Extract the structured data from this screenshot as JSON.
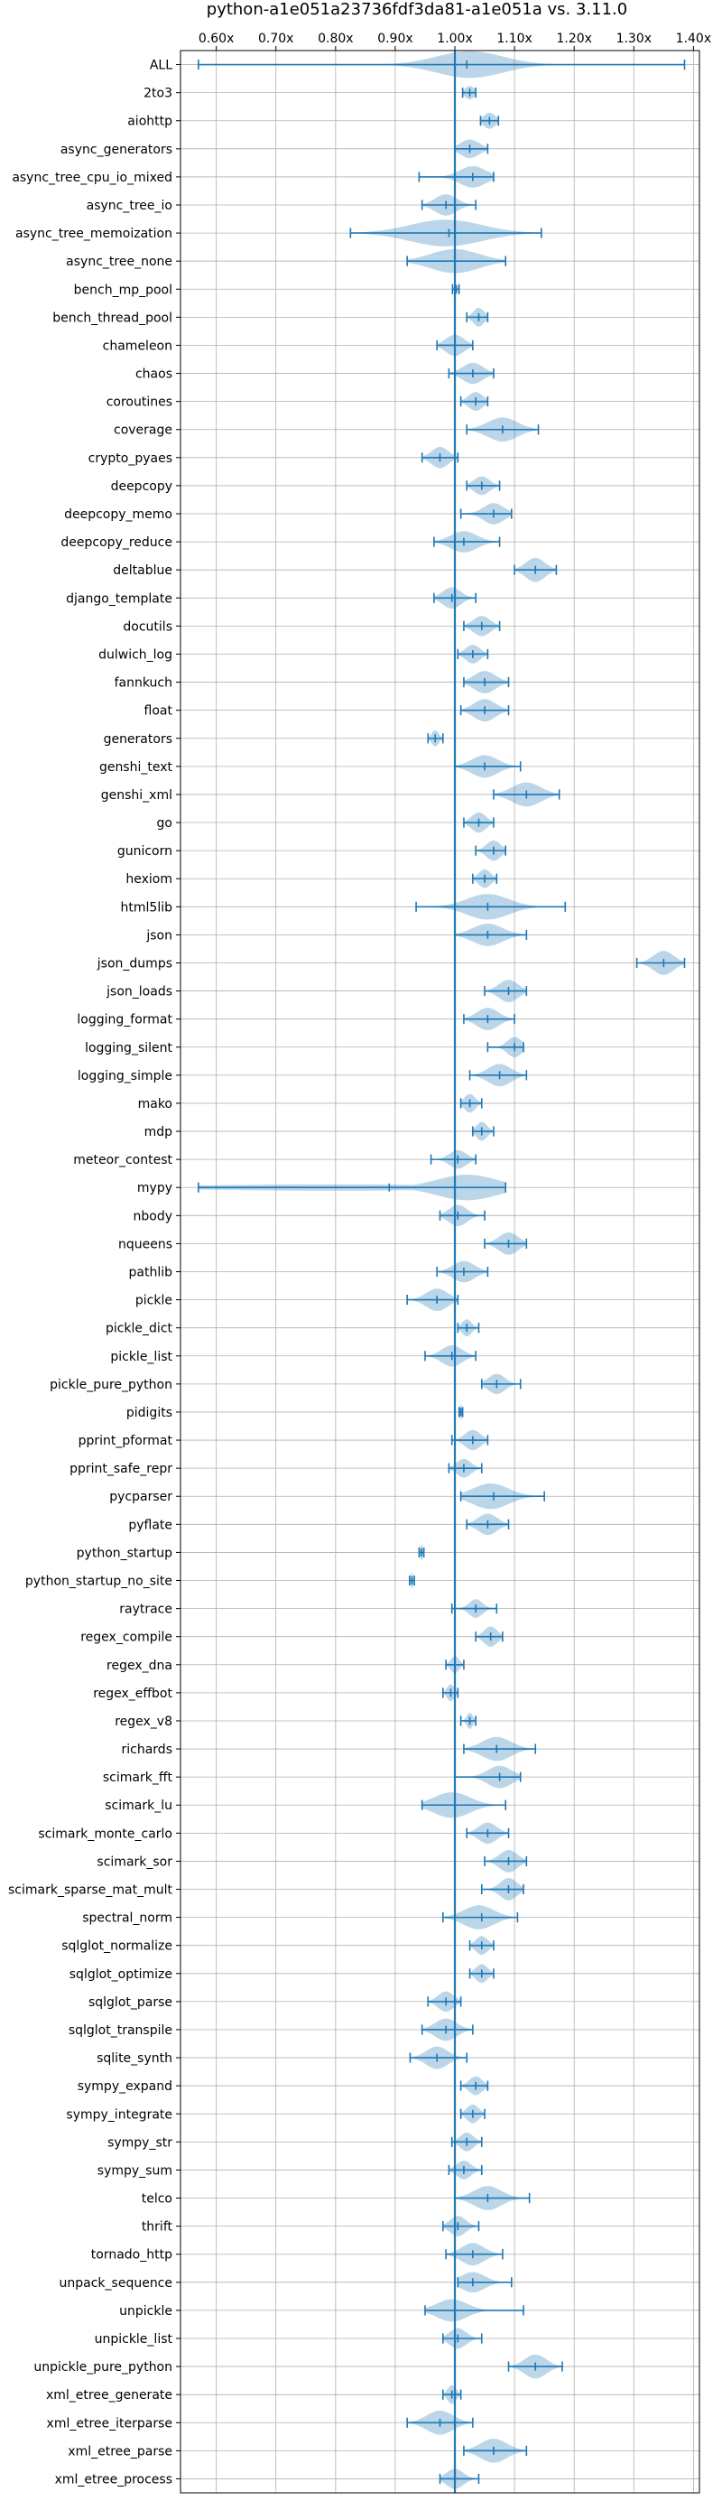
{
  "chart_data": {
    "type": "violin",
    "title": "python-a1e051a23736fdf3da81-a1e051a vs. 3.11.0",
    "xlabel": "",
    "ylabel": "",
    "xlim": [
      0.54,
      1.41
    ],
    "x_ticks": [
      0.6,
      0.7,
      0.8,
      0.9,
      1.0,
      1.1,
      1.2,
      1.3,
      1.4
    ],
    "x_tick_labels": [
      "0.60x",
      "0.70x",
      "0.80x",
      "0.90x",
      "1.00x",
      "1.10x",
      "1.20x",
      "1.30x",
      "1.40x"
    ],
    "x_axis_position": "top",
    "grid": true,
    "reference_line": 1.0,
    "color": "#1f77b4",
    "series": [
      {
        "name": "ALL",
        "min": 0.57,
        "max": 1.385,
        "median": 1.02,
        "mode": 1.025,
        "spread": 0.055,
        "width": 0.5
      },
      {
        "name": "2to3",
        "min": 1.013,
        "max": 1.035,
        "median": 1.025,
        "mode": 1.025,
        "spread": 0.008,
        "width": 0.25
      },
      {
        "name": "aiohttp",
        "min": 1.043,
        "max": 1.073,
        "median": 1.058,
        "mode": 1.058,
        "spread": 0.01,
        "width": 0.3
      },
      {
        "name": "async_generators",
        "min": 1.0,
        "max": 1.055,
        "median": 1.025,
        "mode": 1.025,
        "spread": 0.016,
        "width": 0.35
      },
      {
        "name": "async_tree_cpu_io_mixed",
        "min": 0.94,
        "max": 1.065,
        "median": 1.03,
        "mode": 1.03,
        "spread": 0.022,
        "width": 0.4
      },
      {
        "name": "async_tree_io",
        "min": 0.945,
        "max": 1.035,
        "median": 0.985,
        "mode": 0.985,
        "spread": 0.018,
        "width": 0.4
      },
      {
        "name": "async_tree_memoization",
        "min": 0.825,
        "max": 1.145,
        "median": 0.99,
        "mode": 0.985,
        "spread": 0.06,
        "width": 0.5
      },
      {
        "name": "async_tree_none",
        "min": 0.92,
        "max": 1.085,
        "median": 1.0,
        "mode": 1.0,
        "spread": 0.04,
        "width": 0.45
      },
      {
        "name": "bench_mp_pool",
        "min": 0.996,
        "max": 1.007,
        "median": 1.002,
        "mode": 1.002,
        "spread": 0.003,
        "width": 0.2
      },
      {
        "name": "bench_thread_pool",
        "min": 1.02,
        "max": 1.055,
        "median": 1.04,
        "mode": 1.04,
        "spread": 0.009,
        "width": 0.35
      },
      {
        "name": "chameleon",
        "min": 0.97,
        "max": 1.03,
        "median": 1.0,
        "mode": 1.0,
        "spread": 0.015,
        "width": 0.4
      },
      {
        "name": "chaos",
        "min": 0.99,
        "max": 1.065,
        "median": 1.03,
        "mode": 1.03,
        "spread": 0.017,
        "width": 0.4
      },
      {
        "name": "coroutines",
        "min": 1.01,
        "max": 1.055,
        "median": 1.035,
        "mode": 1.035,
        "spread": 0.012,
        "width": 0.35
      },
      {
        "name": "coverage",
        "min": 1.02,
        "max": 1.14,
        "median": 1.08,
        "mode": 1.08,
        "spread": 0.025,
        "width": 0.45
      },
      {
        "name": "crypto_pyaes",
        "min": 0.945,
        "max": 1.005,
        "median": 0.975,
        "mode": 0.975,
        "spread": 0.014,
        "width": 0.4
      },
      {
        "name": "deepcopy",
        "min": 1.02,
        "max": 1.075,
        "median": 1.045,
        "mode": 1.045,
        "spread": 0.013,
        "width": 0.35
      },
      {
        "name": "deepcopy_memo",
        "min": 1.01,
        "max": 1.095,
        "median": 1.065,
        "mode": 1.065,
        "spread": 0.017,
        "width": 0.4
      },
      {
        "name": "deepcopy_reduce",
        "min": 0.965,
        "max": 1.075,
        "median": 1.015,
        "mode": 1.015,
        "spread": 0.022,
        "width": 0.4
      },
      {
        "name": "deltablue",
        "min": 1.1,
        "max": 1.17,
        "median": 1.135,
        "mode": 1.135,
        "spread": 0.016,
        "width": 0.45
      },
      {
        "name": "django_template",
        "min": 0.965,
        "max": 1.035,
        "median": 0.995,
        "mode": 0.995,
        "spread": 0.015,
        "width": 0.4
      },
      {
        "name": "docutils",
        "min": 1.015,
        "max": 1.075,
        "median": 1.045,
        "mode": 1.045,
        "spread": 0.014,
        "width": 0.38
      },
      {
        "name": "dulwich_log",
        "min": 1.005,
        "max": 1.055,
        "median": 1.03,
        "mode": 1.03,
        "spread": 0.012,
        "width": 0.35
      },
      {
        "name": "fannkuch",
        "min": 1.015,
        "max": 1.09,
        "median": 1.05,
        "mode": 1.05,
        "spread": 0.018,
        "width": 0.42
      },
      {
        "name": "float",
        "min": 1.01,
        "max": 1.09,
        "median": 1.05,
        "mode": 1.05,
        "spread": 0.018,
        "width": 0.42
      },
      {
        "name": "generators",
        "min": 0.955,
        "max": 0.98,
        "median": 0.967,
        "mode": 0.967,
        "spread": 0.006,
        "width": 0.3
      },
      {
        "name": "genshi_text",
        "min": 1.0,
        "max": 1.11,
        "median": 1.05,
        "mode": 1.05,
        "spread": 0.022,
        "width": 0.42
      },
      {
        "name": "genshi_xml",
        "min": 1.065,
        "max": 1.175,
        "median": 1.12,
        "mode": 1.12,
        "spread": 0.024,
        "width": 0.45
      },
      {
        "name": "go",
        "min": 1.015,
        "max": 1.065,
        "median": 1.04,
        "mode": 1.04,
        "spread": 0.012,
        "width": 0.38
      },
      {
        "name": "gunicorn",
        "min": 1.035,
        "max": 1.085,
        "median": 1.065,
        "mode": 1.065,
        "spread": 0.012,
        "width": 0.38
      },
      {
        "name": "hexiom",
        "min": 1.03,
        "max": 1.07,
        "median": 1.05,
        "mode": 1.05,
        "spread": 0.01,
        "width": 0.35
      },
      {
        "name": "html5lib",
        "min": 0.935,
        "max": 1.185,
        "median": 1.055,
        "mode": 1.055,
        "spread": 0.035,
        "width": 0.48
      },
      {
        "name": "json",
        "min": 1.0,
        "max": 1.12,
        "median": 1.055,
        "mode": 1.055,
        "spread": 0.025,
        "width": 0.42
      },
      {
        "name": "json_dumps",
        "min": 1.305,
        "max": 1.385,
        "median": 1.35,
        "mode": 1.35,
        "spread": 0.017,
        "width": 0.45
      },
      {
        "name": "json_loads",
        "min": 1.05,
        "max": 1.12,
        "median": 1.09,
        "mode": 1.09,
        "spread": 0.016,
        "width": 0.42
      },
      {
        "name": "logging_format",
        "min": 1.015,
        "max": 1.1,
        "median": 1.055,
        "mode": 1.055,
        "spread": 0.018,
        "width": 0.42
      },
      {
        "name": "logging_silent",
        "min": 1.055,
        "max": 1.115,
        "median": 1.1,
        "mode": 1.1,
        "spread": 0.012,
        "width": 0.38
      },
      {
        "name": "logging_simple",
        "min": 1.025,
        "max": 1.12,
        "median": 1.075,
        "mode": 1.075,
        "spread": 0.019,
        "width": 0.42
      },
      {
        "name": "mako",
        "min": 1.01,
        "max": 1.045,
        "median": 1.025,
        "mode": 1.025,
        "spread": 0.009,
        "width": 0.35
      },
      {
        "name": "mdp",
        "min": 1.03,
        "max": 1.065,
        "median": 1.045,
        "mode": 1.045,
        "spread": 0.009,
        "width": 0.35
      },
      {
        "name": "meteor_contest",
        "min": 0.96,
        "max": 1.035,
        "median": 1.005,
        "mode": 1.005,
        "spread": 0.014,
        "width": 0.35
      },
      {
        "name": "mypy",
        "min": 0.57,
        "max": 1.085,
        "median": 0.89,
        "mode": 1.02,
        "spread": 0.05,
        "width": 0.48,
        "tail": 0.6
      },
      {
        "name": "nbody",
        "min": 0.975,
        "max": 1.05,
        "median": 1.005,
        "mode": 1.005,
        "spread": 0.015,
        "width": 0.4
      },
      {
        "name": "nqueens",
        "min": 1.05,
        "max": 1.12,
        "median": 1.09,
        "mode": 1.09,
        "spread": 0.016,
        "width": 0.42
      },
      {
        "name": "pathlib",
        "min": 0.97,
        "max": 1.055,
        "median": 1.015,
        "mode": 1.015,
        "spread": 0.018,
        "width": 0.4
      },
      {
        "name": "pickle",
        "min": 0.92,
        "max": 1.005,
        "median": 0.97,
        "mode": 0.97,
        "spread": 0.018,
        "width": 0.42
      },
      {
        "name": "pickle_dict",
        "min": 1.005,
        "max": 1.04,
        "median": 1.02,
        "mode": 1.02,
        "spread": 0.008,
        "width": 0.32
      },
      {
        "name": "pickle_list",
        "min": 0.95,
        "max": 1.035,
        "median": 0.995,
        "mode": 0.995,
        "spread": 0.017,
        "width": 0.4
      },
      {
        "name": "pickle_pure_python",
        "min": 1.045,
        "max": 1.11,
        "median": 1.07,
        "mode": 1.07,
        "spread": 0.014,
        "width": 0.38
      },
      {
        "name": "pidigits",
        "min": 1.007,
        "max": 1.013,
        "median": 1.01,
        "mode": 1.01,
        "spread": 0.002,
        "width": 0.28
      },
      {
        "name": "pprint_pformat",
        "min": 0.995,
        "max": 1.055,
        "median": 1.03,
        "mode": 1.03,
        "spread": 0.013,
        "width": 0.38
      },
      {
        "name": "pprint_safe_repr",
        "min": 0.99,
        "max": 1.045,
        "median": 1.015,
        "mode": 1.015,
        "spread": 0.012,
        "width": 0.35
      },
      {
        "name": "pycparser",
        "min": 1.01,
        "max": 1.15,
        "median": 1.065,
        "mode": 1.06,
        "spread": 0.03,
        "width": 0.48
      },
      {
        "name": "pyflate",
        "min": 1.02,
        "max": 1.09,
        "median": 1.055,
        "mode": 1.055,
        "spread": 0.016,
        "width": 0.4
      },
      {
        "name": "python_startup",
        "min": 0.94,
        "max": 0.948,
        "median": 0.944,
        "mode": 0.944,
        "spread": 0.002,
        "width": 0.3
      },
      {
        "name": "python_startup_no_site",
        "min": 0.924,
        "max": 0.932,
        "median": 0.928,
        "mode": 0.928,
        "spread": 0.002,
        "width": 0.3
      },
      {
        "name": "raytrace",
        "min": 0.995,
        "max": 1.07,
        "median": 1.035,
        "mode": 1.035,
        "spread": 0.011,
        "width": 0.35
      },
      {
        "name": "regex_compile",
        "min": 1.035,
        "max": 1.08,
        "median": 1.06,
        "mode": 1.06,
        "spread": 0.011,
        "width": 0.38
      },
      {
        "name": "regex_dna",
        "min": 0.985,
        "max": 1.015,
        "median": 1.0,
        "mode": 1.0,
        "spread": 0.007,
        "width": 0.32
      },
      {
        "name": "regex_effbot",
        "min": 0.98,
        "max": 1.005,
        "median": 0.993,
        "mode": 0.993,
        "spread": 0.006,
        "width": 0.32
      },
      {
        "name": "regex_v8",
        "min": 1.01,
        "max": 1.035,
        "median": 1.025,
        "mode": 1.025,
        "spread": 0.005,
        "width": 0.3
      },
      {
        "name": "richards",
        "min": 1.015,
        "max": 1.135,
        "median": 1.07,
        "mode": 1.07,
        "spread": 0.024,
        "width": 0.45
      },
      {
        "name": "scimark_fft",
        "min": 1.0,
        "max": 1.11,
        "median": 1.075,
        "mode": 1.075,
        "spread": 0.02,
        "width": 0.42
      },
      {
        "name": "scimark_lu",
        "min": 0.945,
        "max": 1.085,
        "median": 1.0,
        "mode": 0.995,
        "spread": 0.03,
        "width": 0.48
      },
      {
        "name": "scimark_monte_carlo",
        "min": 1.02,
        "max": 1.09,
        "median": 1.055,
        "mode": 1.055,
        "spread": 0.015,
        "width": 0.4
      },
      {
        "name": "scimark_sor",
        "min": 1.05,
        "max": 1.12,
        "median": 1.09,
        "mode": 1.09,
        "spread": 0.015,
        "width": 0.42
      },
      {
        "name": "scimark_sparse_mat_mult",
        "min": 1.045,
        "max": 1.115,
        "median": 1.09,
        "mode": 1.09,
        "spread": 0.014,
        "width": 0.42
      },
      {
        "name": "spectral_norm",
        "min": 0.98,
        "max": 1.105,
        "median": 1.045,
        "mode": 1.04,
        "spread": 0.025,
        "width": 0.45
      },
      {
        "name": "sqlglot_normalize",
        "min": 1.025,
        "max": 1.065,
        "median": 1.045,
        "mode": 1.045,
        "spread": 0.01,
        "width": 0.35
      },
      {
        "name": "sqlglot_optimize",
        "min": 1.025,
        "max": 1.065,
        "median": 1.045,
        "mode": 1.045,
        "spread": 0.01,
        "width": 0.35
      },
      {
        "name": "sqlglot_parse",
        "min": 0.955,
        "max": 1.01,
        "median": 0.985,
        "mode": 0.985,
        "spread": 0.013,
        "width": 0.38
      },
      {
        "name": "sqlglot_transpile",
        "min": 0.945,
        "max": 1.03,
        "median": 0.985,
        "mode": 0.985,
        "spread": 0.018,
        "width": 0.42
      },
      {
        "name": "sqlite_synth",
        "min": 0.925,
        "max": 1.02,
        "median": 0.97,
        "mode": 0.97,
        "spread": 0.018,
        "width": 0.42
      },
      {
        "name": "sympy_expand",
        "min": 1.01,
        "max": 1.055,
        "median": 1.035,
        "mode": 1.035,
        "spread": 0.011,
        "width": 0.35
      },
      {
        "name": "sympy_integrate",
        "min": 1.01,
        "max": 1.05,
        "median": 1.03,
        "mode": 1.03,
        "spread": 0.01,
        "width": 0.35
      },
      {
        "name": "sympy_str",
        "min": 0.995,
        "max": 1.045,
        "median": 1.02,
        "mode": 1.02,
        "spread": 0.011,
        "width": 0.35
      },
      {
        "name": "sympy_sum",
        "min": 0.99,
        "max": 1.045,
        "median": 1.015,
        "mode": 1.015,
        "spread": 0.012,
        "width": 0.35
      },
      {
        "name": "telco",
        "min": 1.0,
        "max": 1.125,
        "median": 1.055,
        "mode": 1.055,
        "spread": 0.023,
        "width": 0.45
      },
      {
        "name": "thrift",
        "min": 0.98,
        "max": 1.04,
        "median": 1.005,
        "mode": 1.005,
        "spread": 0.013,
        "width": 0.38
      },
      {
        "name": "tornado_http",
        "min": 0.985,
        "max": 1.08,
        "median": 1.03,
        "mode": 1.03,
        "spread": 0.019,
        "width": 0.42
      },
      {
        "name": "unpack_sequence",
        "min": 1.005,
        "max": 1.095,
        "median": 1.03,
        "mode": 1.03,
        "spread": 0.02,
        "width": 0.38
      },
      {
        "name": "unpickle",
        "min": 0.95,
        "max": 1.115,
        "median": 1.0,
        "mode": 0.995,
        "spread": 0.025,
        "width": 0.42
      },
      {
        "name": "unpickle_list",
        "min": 0.98,
        "max": 1.045,
        "median": 1.005,
        "mode": 1.005,
        "spread": 0.014,
        "width": 0.38
      },
      {
        "name": "unpickle_pure_python",
        "min": 1.09,
        "max": 1.18,
        "median": 1.135,
        "mode": 1.135,
        "spread": 0.018,
        "width": 0.45
      },
      {
        "name": "xml_etree_generate",
        "min": 0.98,
        "max": 1.01,
        "median": 0.995,
        "mode": 0.995,
        "spread": 0.007,
        "width": 0.35
      },
      {
        "name": "xml_etree_iterparse",
        "min": 0.92,
        "max": 1.03,
        "median": 0.975,
        "mode": 0.975,
        "spread": 0.022,
        "width": 0.45
      },
      {
        "name": "xml_etree_parse",
        "min": 1.015,
        "max": 1.12,
        "median": 1.065,
        "mode": 1.065,
        "spread": 0.022,
        "width": 0.45
      },
      {
        "name": "xml_etree_process",
        "min": 0.975,
        "max": 1.04,
        "median": 1.0,
        "mode": 1.0,
        "spread": 0.014,
        "width": 0.38
      }
    ]
  }
}
